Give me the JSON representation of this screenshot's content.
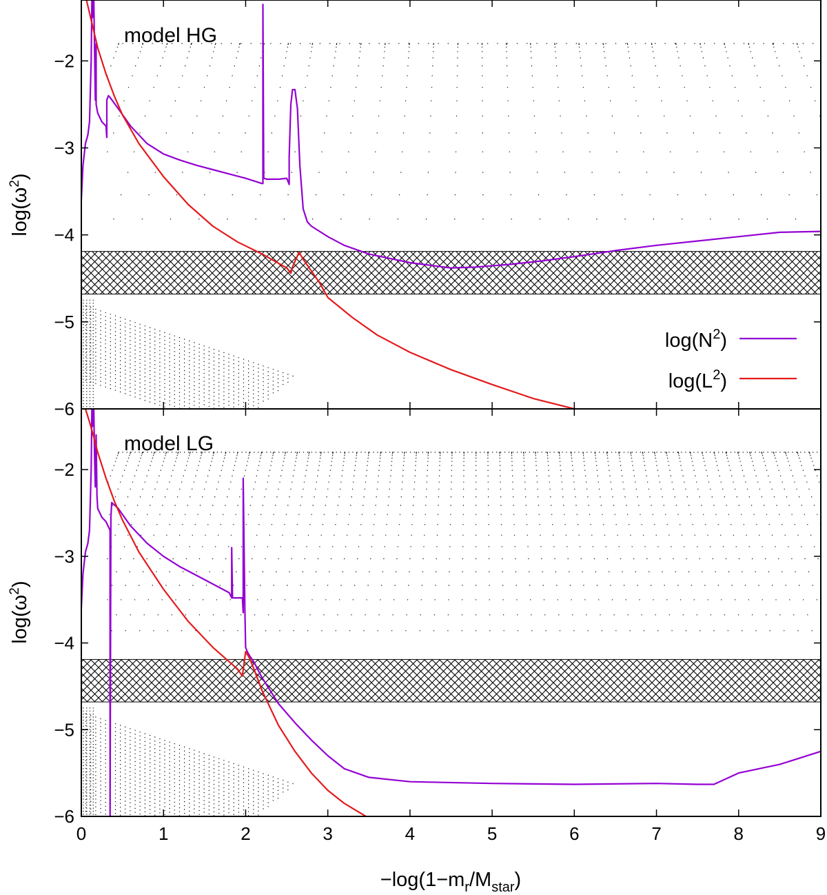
{
  "chart_data": [
    {
      "type": "line",
      "panel_label": "model HG",
      "title": "",
      "xlabel": "−log(1−m_r/M_star)",
      "ylabel": "log(ω²)",
      "xlim": [
        0,
        9
      ],
      "ylim": [
        -6,
        -1.3
      ],
      "x_ticks": [
        0,
        1,
        2,
        3,
        4,
        5,
        6,
        7,
        8,
        9
      ],
      "y_ticks": [
        -6,
        -5,
        -4,
        -3,
        -2
      ],
      "y_tick_labels": [
        "−6",
        "−5",
        "−4",
        "−3",
        "−2"
      ],
      "x_tick_labels_shown": false,
      "hatched_band": [
        -4.68,
        -4.19
      ],
      "legend": {
        "position": "middle-right",
        "entries": [
          {
            "label_base": "log(N",
            "label_sup": "2",
            "label_end": ")",
            "color": "#9400d3"
          },
          {
            "label_base": "log(L",
            "label_sup": "2",
            "label_end": ")",
            "color": "#e41a1c"
          }
        ]
      },
      "series": [
        {
          "name": "log(N²)",
          "color": "#9400d3",
          "x": [
            0.0,
            0.02,
            0.05,
            0.08,
            0.1,
            0.12,
            0.13,
            0.14,
            0.15,
            0.16,
            0.17,
            0.18,
            0.18,
            0.2,
            0.25,
            0.3,
            0.31,
            0.31,
            0.33,
            0.35,
            0.45,
            0.6,
            0.8,
            1.0,
            1.2,
            1.4,
            1.6,
            1.8,
            2.0,
            2.2,
            2.21,
            2.21,
            2.22,
            2.22,
            2.26,
            2.4,
            2.5,
            2.53,
            2.53,
            2.55,
            2.57,
            2.6,
            2.63,
            2.66,
            2.7,
            2.75,
            2.8,
            3.0,
            3.2,
            3.5,
            4.0,
            4.5,
            4.8,
            5.2,
            5.6,
            6.0,
            6.5,
            7.0,
            7.5,
            8.0,
            8.5,
            9.0
          ],
          "y": [
            -3.6,
            -3.2,
            -2.95,
            -2.85,
            -2.7,
            -2.0,
            -1.2,
            -1.5,
            -1.2,
            -1.8,
            -2.45,
            -1.8,
            -2.5,
            -2.6,
            -2.7,
            -2.75,
            -2.88,
            -2.45,
            -2.4,
            -2.42,
            -2.55,
            -2.75,
            -2.95,
            -3.07,
            -3.14,
            -3.2,
            -3.25,
            -3.3,
            -3.35,
            -3.41,
            -3.41,
            -1.35,
            -3.35,
            -3.35,
            -3.36,
            -3.36,
            -3.35,
            -3.42,
            -3.1,
            -2.5,
            -2.33,
            -2.33,
            -2.55,
            -3.2,
            -3.7,
            -3.85,
            -3.9,
            -4.02,
            -4.12,
            -4.22,
            -4.32,
            -4.38,
            -4.37,
            -4.34,
            -4.3,
            -4.25,
            -4.18,
            -4.12,
            -4.07,
            -4.02,
            -3.97,
            -3.96
          ]
        },
        {
          "name": "log(L²)",
          "color": "#e41a1c",
          "x": [
            0.05,
            0.1,
            0.15,
            0.2,
            0.3,
            0.4,
            0.5,
            0.7,
            1.0,
            1.3,
            1.6,
            1.9,
            2.2,
            2.5,
            2.55,
            2.57,
            2.65,
            2.7,
            2.9,
            3.0,
            3.3,
            3.6,
            4.0,
            4.5,
            5.0,
            5.5,
            6.0
          ],
          "y": [
            -1.25,
            -1.45,
            -1.65,
            -1.85,
            -2.15,
            -2.4,
            -2.62,
            -2.95,
            -3.33,
            -3.65,
            -3.9,
            -4.08,
            -4.22,
            -4.38,
            -4.44,
            -4.37,
            -4.2,
            -4.28,
            -4.55,
            -4.72,
            -4.95,
            -5.15,
            -5.35,
            -5.55,
            -5.72,
            -5.88,
            -6.0
          ]
        }
      ]
    },
    {
      "type": "line",
      "panel_label": "model LG",
      "title": "",
      "xlabel": "−log(1−m_r/M_star)",
      "ylabel": "log(ω²)",
      "xlim": [
        0,
        9
      ],
      "ylim": [
        -6,
        -1.3
      ],
      "x_ticks": [
        0,
        1,
        2,
        3,
        4,
        5,
        6,
        7,
        8,
        9
      ],
      "x_tick_labels": [
        "0",
        "1",
        "2",
        "3",
        "4",
        "5",
        "6",
        "7",
        "8",
        "9"
      ],
      "y_ticks": [
        -6,
        -5,
        -4,
        -3,
        -2
      ],
      "y_tick_labels": [
        "−6",
        "−5",
        "−4",
        "−3",
        "−2"
      ],
      "hatched_band": [
        -4.68,
        -4.19
      ],
      "series": [
        {
          "name": "log(N²)",
          "color": "#9400d3",
          "x": [
            0.0,
            0.02,
            0.05,
            0.08,
            0.1,
            0.12,
            0.13,
            0.14,
            0.15,
            0.16,
            0.17,
            0.18,
            0.19,
            0.2,
            0.25,
            0.3,
            0.34,
            0.35,
            0.35,
            0.36,
            0.37,
            0.45,
            0.6,
            0.8,
            1.0,
            1.2,
            1.4,
            1.6,
            1.8,
            1.83,
            1.83,
            1.84,
            1.84,
            1.9,
            1.96,
            1.97,
            1.97,
            1.99,
            2.0,
            2.02,
            2.05,
            2.1,
            2.2,
            2.4,
            2.6,
            2.8,
            3.0,
            3.2,
            3.5,
            4.0,
            5.0,
            6.0,
            7.0,
            7.5,
            7.7,
            8.0,
            8.5,
            9.0
          ],
          "y": [
            -3.6,
            -3.2,
            -2.95,
            -2.85,
            -2.7,
            -2.0,
            -1.2,
            -1.5,
            -1.2,
            -1.8,
            -2.2,
            -1.6,
            -2.3,
            -2.45,
            -2.55,
            -2.6,
            -2.68,
            -2.7,
            -6.0,
            -2.55,
            -2.38,
            -2.45,
            -2.65,
            -2.85,
            -3.0,
            -3.12,
            -3.22,
            -3.32,
            -3.42,
            -3.48,
            -2.9,
            -3.48,
            -3.48,
            -3.48,
            -3.48,
            -3.65,
            -2.1,
            -3.6,
            -4.05,
            -4.1,
            -4.15,
            -4.22,
            -4.4,
            -4.7,
            -4.92,
            -5.12,
            -5.3,
            -5.45,
            -5.55,
            -5.6,
            -5.62,
            -5.63,
            -5.62,
            -5.63,
            -5.63,
            -5.5,
            -5.4,
            -5.25
          ]
        },
        {
          "name": "log(L²)",
          "color": "#e41a1c",
          "x": [
            0.05,
            0.1,
            0.15,
            0.2,
            0.3,
            0.4,
            0.5,
            0.7,
            1.0,
            1.3,
            1.6,
            1.9,
            1.96,
            2.0,
            2.05,
            2.1,
            2.2,
            2.4,
            2.6,
            2.8,
            3.0,
            3.2,
            3.5
          ],
          "y": [
            -1.3,
            -1.45,
            -1.62,
            -1.8,
            -2.1,
            -2.36,
            -2.58,
            -2.95,
            -3.38,
            -3.75,
            -4.05,
            -4.3,
            -4.38,
            -4.1,
            -4.18,
            -4.3,
            -4.55,
            -4.95,
            -5.25,
            -5.5,
            -5.7,
            -5.85,
            -6.02
          ]
        }
      ]
    }
  ]
}
